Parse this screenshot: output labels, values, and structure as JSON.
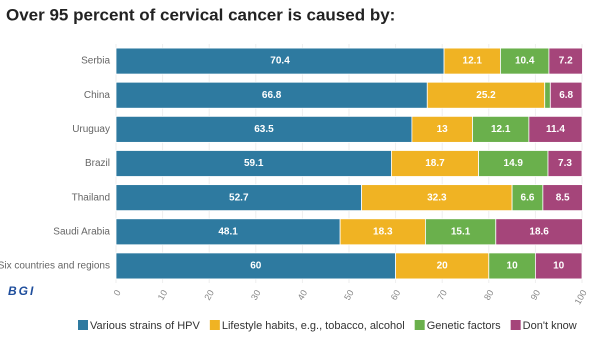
{
  "chart_data": {
    "type": "stacked-bar-horizontal",
    "title": "Over 95 percent of cervical cancer is caused by:",
    "logo": "BGI",
    "categories": [
      "Serbia",
      "China",
      "Uruguay",
      "Brazil",
      "Thailand",
      "Saudi Arabia",
      "Six countries and regions"
    ],
    "series": [
      {
        "name": "Various strains of HPV",
        "color": "#2e7aa0",
        "values": [
          70.4,
          66.8,
          63.5,
          59.1,
          52.7,
          48.1,
          60
        ]
      },
      {
        "name": "Lifestyle habits, e.g., tobacco, alcohol",
        "color": "#f0b323",
        "values": [
          12.1,
          25.2,
          13,
          18.7,
          32.3,
          18.3,
          20
        ]
      },
      {
        "name": "Genetic factors",
        "color": "#6ab04c",
        "values": [
          10.4,
          1.2,
          12.1,
          14.9,
          6.6,
          15.1,
          10
        ]
      },
      {
        "name": "Don't know",
        "color": "#a5457a",
        "values": [
          7.2,
          6.8,
          11.4,
          7.3,
          8.5,
          18.6,
          10
        ]
      }
    ],
    "xlim": [
      0,
      100
    ],
    "xticks": [
      0,
      10,
      20,
      30,
      40,
      50,
      60,
      70,
      80,
      90,
      100
    ],
    "grid": true
  }
}
